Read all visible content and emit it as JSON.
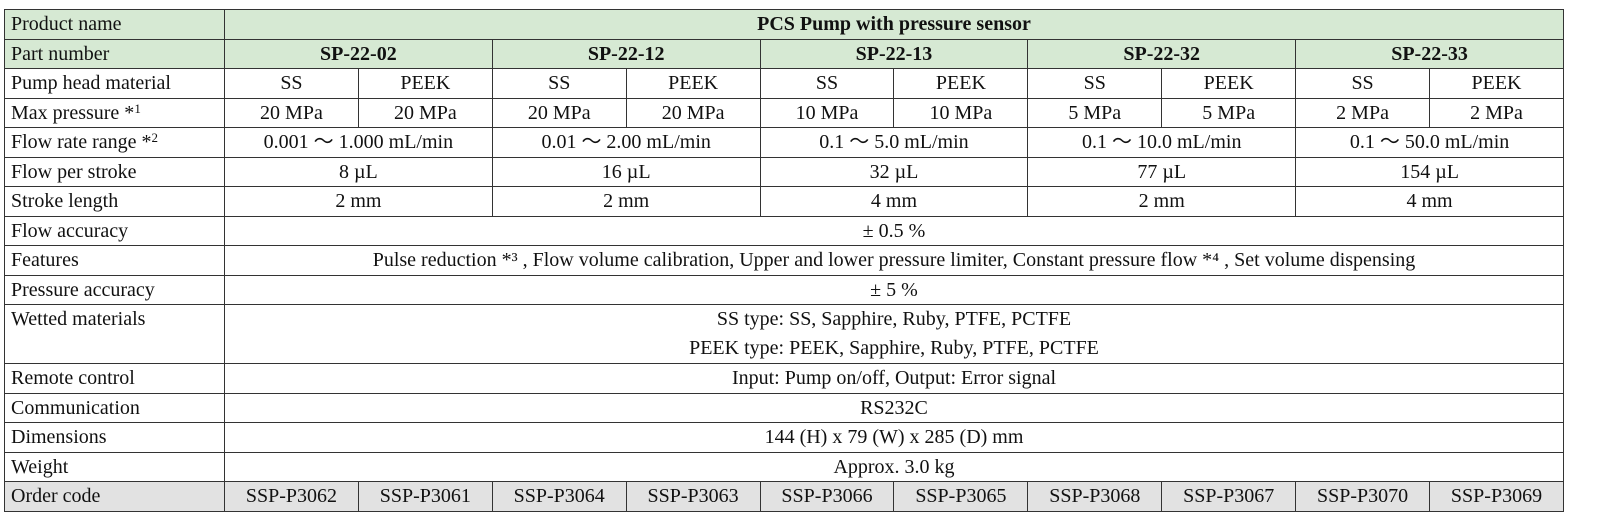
{
  "rows": [
    {
      "label": "Product name",
      "style": "green",
      "cells": [
        {
          "text": "PCS Pump with pressure sensor",
          "span": 10,
          "bold": true
        }
      ]
    },
    {
      "label": "Part number",
      "style": "green",
      "cells": [
        {
          "text": "SP-22-02",
          "span": 2,
          "bold": true
        },
        {
          "text": "SP-22-12",
          "span": 2,
          "bold": true
        },
        {
          "text": "SP-22-13",
          "span": 2,
          "bold": true
        },
        {
          "text": "SP-22-32",
          "span": 2,
          "bold": true
        },
        {
          "text": "SP-22-33",
          "span": 2,
          "bold": true
        }
      ]
    },
    {
      "label": "Pump head material",
      "cells": [
        {
          "text": "SS"
        },
        {
          "text": "PEEK"
        },
        {
          "text": "SS"
        },
        {
          "text": "PEEK"
        },
        {
          "text": "SS"
        },
        {
          "text": "PEEK"
        },
        {
          "text": "SS"
        },
        {
          "text": "PEEK"
        },
        {
          "text": "SS"
        },
        {
          "text": "PEEK"
        }
      ]
    },
    {
      "label": "Max pressure *",
      "label_sup": "1",
      "cells": [
        {
          "text": "20 MPa"
        },
        {
          "text": "20 MPa"
        },
        {
          "text": "20 MPa"
        },
        {
          "text": "20 MPa"
        },
        {
          "text": "10 MPa"
        },
        {
          "text": "10 MPa"
        },
        {
          "text": "5 MPa"
        },
        {
          "text": "5 MPa"
        },
        {
          "text": "2 MPa"
        },
        {
          "text": "2 MPa"
        }
      ]
    },
    {
      "label": "Flow rate range *",
      "label_sup": "2",
      "cells": [
        {
          "text": "0.001 〜 1.000 mL/min",
          "span": 2
        },
        {
          "text": "0.01 〜 2.00 mL/min",
          "span": 2
        },
        {
          "text": "0.1 〜 5.0 mL/min",
          "span": 2
        },
        {
          "text": "0.1 〜 10.0 mL/min",
          "span": 2
        },
        {
          "text": "0.1 〜 50.0 mL/min",
          "span": 2
        }
      ]
    },
    {
      "label": "Flow per stroke",
      "cells": [
        {
          "text": "8 µL",
          "span": 2
        },
        {
          "text": "16 µL",
          "span": 2
        },
        {
          "text": "32 µL",
          "span": 2
        },
        {
          "text": "77 µL",
          "span": 2
        },
        {
          "text": "154 µL",
          "span": 2
        }
      ]
    },
    {
      "label": "Stroke length",
      "cells": [
        {
          "text": "2 mm",
          "span": 2
        },
        {
          "text": "2 mm",
          "span": 2
        },
        {
          "text": "4 mm",
          "span": 2
        },
        {
          "text": "2 mm",
          "span": 2
        },
        {
          "text": "4 mm",
          "span": 2
        }
      ]
    },
    {
      "label": "Flow accuracy",
      "cells": [
        {
          "text": "± 0.5 %",
          "span": 10
        }
      ]
    },
    {
      "label": "Features",
      "cells": [
        {
          "text": "Pulse reduction *³ , Flow volume calibration, Upper and lower pressure limiter, Constant pressure flow *⁴ , Set volume dispensing",
          "span": 10
        }
      ]
    },
    {
      "label": "Pressure accuracy",
      "cells": [
        {
          "text": "± 5 %",
          "span": 10
        }
      ]
    },
    {
      "label": "Wetted materials",
      "multi": true,
      "cells": [
        {
          "text": "SS type: SS, Sapphire, Ruby, PTFE, PCTFE\nPEEK type: PEEK, Sapphire, Ruby, PTFE, PCTFE",
          "span": 10
        }
      ]
    },
    {
      "label": "Remote control",
      "cells": [
        {
          "text": "Input: Pump on/off, Output: Error signal",
          "span": 10
        }
      ]
    },
    {
      "label": "Communication",
      "cells": [
        {
          "text": "RS232C",
          "span": 10
        }
      ]
    },
    {
      "label": "Dimensions",
      "cells": [
        {
          "text": "144 (H) x 79 (W) x 285 (D) mm",
          "span": 10
        }
      ]
    },
    {
      "label": "Weight",
      "cells": [
        {
          "text": "Approx.  3.0 kg",
          "span": 10
        }
      ]
    },
    {
      "label": "Order code",
      "style": "gray",
      "cells": [
        {
          "text": "SSP-P3062"
        },
        {
          "text": "SSP-P3061"
        },
        {
          "text": "SSP-P3064"
        },
        {
          "text": "SSP-P3063"
        },
        {
          "text": "SSP-P3066"
        },
        {
          "text": "SSP-P3065"
        },
        {
          "text": "SSP-P3068"
        },
        {
          "text": "SSP-P3067"
        },
        {
          "text": "SSP-P3070"
        },
        {
          "text": "SSP-P3069"
        }
      ]
    }
  ],
  "colors": {
    "header_green": "#d6e9d3",
    "order_gray": "#e2e2e2",
    "border": "#333333"
  }
}
